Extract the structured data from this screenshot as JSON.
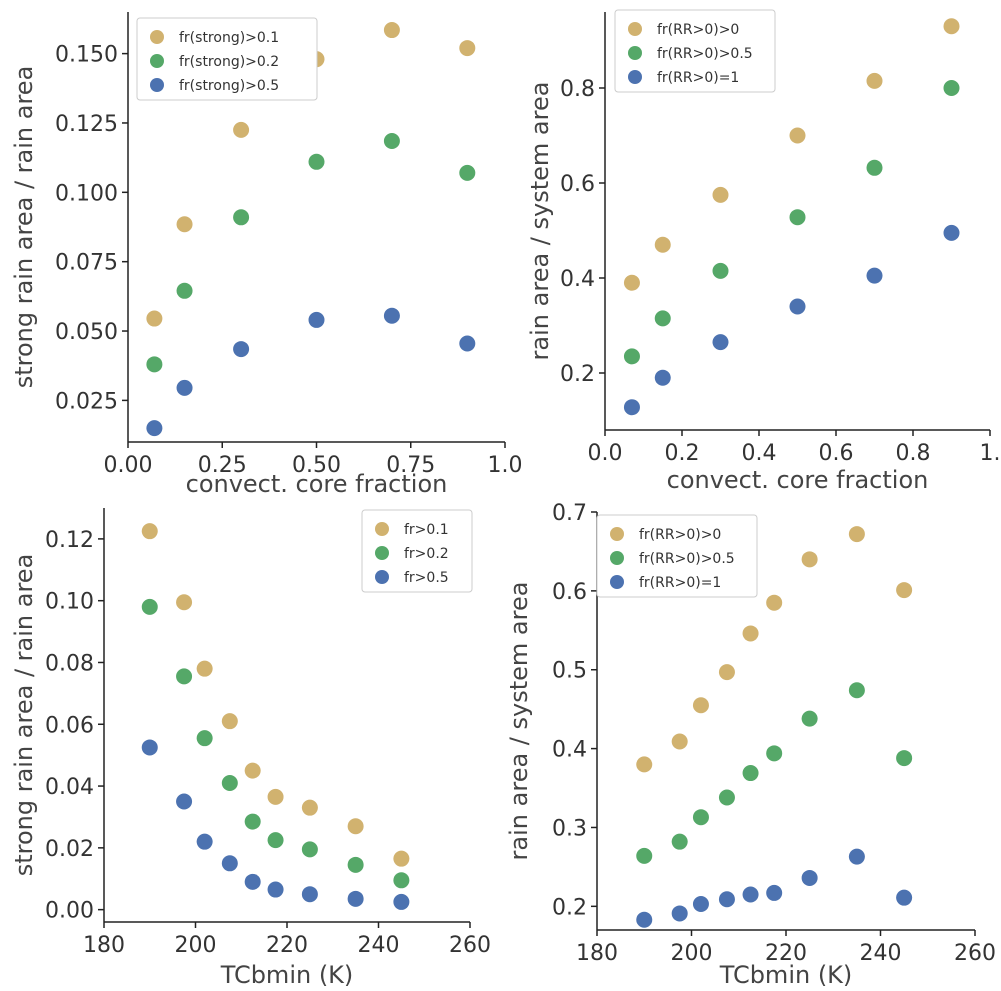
{
  "colors": {
    "tan": "#d1b26f",
    "green": "#55a868",
    "blue": "#4c72b0"
  },
  "chart_data": [
    {
      "type": "scatter",
      "xlabel": "convect. core fraction",
      "ylabel": "strong rain area / rain area",
      "xlim": [
        0,
        1.0
      ],
      "ylim": [
        0.01,
        0.165
      ],
      "xticks": [
        0.0,
        0.25,
        0.5,
        0.75,
        1.0
      ],
      "xtick_labels": [
        "0.00",
        "0.25",
        "0.50",
        "0.75",
        "1.0"
      ],
      "yticks": [
        0.025,
        0.05,
        0.075,
        0.1,
        0.125,
        0.15
      ],
      "ytick_labels": [
        "0.025",
        "0.050",
        "0.075",
        "0.100",
        "0.125",
        "0.150"
      ],
      "legend": "top-left",
      "grid": false,
      "series": [
        {
          "name": "fr(strong)>0.1",
          "color": "tan",
          "x": [
            0.07,
            0.15,
            0.3,
            0.5,
            0.7,
            0.9
          ],
          "y": [
            0.0545,
            0.0885,
            0.1225,
            0.148,
            0.1585,
            0.152
          ]
        },
        {
          "name": "fr(strong)>0.2",
          "color": "green",
          "x": [
            0.07,
            0.15,
            0.3,
            0.5,
            0.7,
            0.9
          ],
          "y": [
            0.038,
            0.0645,
            0.091,
            0.111,
            0.1185,
            0.107
          ]
        },
        {
          "name": "fr(strong)>0.5",
          "color": "blue",
          "x": [
            0.07,
            0.15,
            0.3,
            0.5,
            0.7,
            0.9
          ],
          "y": [
            0.015,
            0.0295,
            0.0435,
            0.054,
            0.0555,
            0.0455
          ]
        }
      ]
    },
    {
      "type": "scatter",
      "xlabel": "convect. core fraction",
      "ylabel": "rain area / system area",
      "xlim": [
        0,
        1.0
      ],
      "ylim": [
        0.08,
        0.96
      ],
      "xticks": [
        0.0,
        0.2,
        0.4,
        0.6,
        0.8,
        1.0
      ],
      "xtick_labels": [
        "0.0",
        "0.2",
        "0.4",
        "0.6",
        "0.8",
        "1."
      ],
      "yticks": [
        0.2,
        0.4,
        0.6,
        0.8
      ],
      "ytick_labels": [
        "0.2",
        "0.4",
        "0.6",
        "0.8"
      ],
      "legend": "top-left",
      "grid": false,
      "series": [
        {
          "name": "fr(RR>0)>0",
          "color": "tan",
          "x": [
            0.07,
            0.15,
            0.3,
            0.5,
            0.7,
            0.9
          ],
          "y": [
            0.39,
            0.47,
            0.575,
            0.7,
            0.815,
            0.93
          ]
        },
        {
          "name": "fr(RR>0)>0.5",
          "color": "green",
          "x": [
            0.07,
            0.15,
            0.3,
            0.5,
            0.7,
            0.9
          ],
          "y": [
            0.235,
            0.315,
            0.415,
            0.528,
            0.632,
            0.8
          ]
        },
        {
          "name": "fr(RR>0)=1",
          "color": "blue",
          "x": [
            0.07,
            0.15,
            0.3,
            0.5,
            0.7,
            0.9
          ],
          "y": [
            0.128,
            0.19,
            0.265,
            0.34,
            0.405,
            0.495
          ]
        }
      ]
    },
    {
      "type": "scatter",
      "xlabel": "TCbmin (K)",
      "ylabel": "strong rain area / rain area",
      "xlim": [
        180,
        260
      ],
      "ylim": [
        -0.004,
        0.13
      ],
      "xticks": [
        180,
        200,
        220,
        240,
        260
      ],
      "xtick_labels": [
        "180",
        "200",
        "220",
        "240",
        "260"
      ],
      "yticks": [
        0.0,
        0.02,
        0.04,
        0.06,
        0.08,
        0.1,
        0.12
      ],
      "ytick_labels": [
        "0.00",
        "0.02",
        "0.04",
        "0.06",
        "0.08",
        "0.10",
        "0.12"
      ],
      "legend": "top-right",
      "grid": false,
      "series": [
        {
          "name": "fr>0.1",
          "color": "tan",
          "x": [
            190,
            197.5,
            202,
            207.5,
            212.5,
            217.5,
            225,
            235,
            245
          ],
          "y": [
            0.1225,
            0.0995,
            0.078,
            0.061,
            0.045,
            0.0365,
            0.033,
            0.027,
            0.0165
          ]
        },
        {
          "name": "fr>0.2",
          "color": "green",
          "x": [
            190,
            197.5,
            202,
            207.5,
            212.5,
            217.5,
            225,
            235,
            245
          ],
          "y": [
            0.098,
            0.0755,
            0.0555,
            0.041,
            0.0285,
            0.0225,
            0.0195,
            0.0145,
            0.0095
          ]
        },
        {
          "name": "fr>0.5",
          "color": "blue",
          "x": [
            190,
            197.5,
            202,
            207.5,
            212.5,
            217.5,
            225,
            235,
            245
          ],
          "y": [
            0.0525,
            0.035,
            0.022,
            0.015,
            0.009,
            0.0065,
            0.005,
            0.0035,
            0.0025
          ]
        }
      ]
    },
    {
      "type": "scatter",
      "xlabel": "TCbmin (K)",
      "ylabel": "rain area / system area",
      "xlim": [
        180,
        260
      ],
      "ylim": [
        0.17,
        0.7
      ],
      "xticks": [
        180,
        200,
        220,
        240,
        260
      ],
      "xtick_labels": [
        "180",
        "200",
        "220",
        "240",
        "260"
      ],
      "yticks": [
        0.2,
        0.3,
        0.4,
        0.5,
        0.6,
        0.7
      ],
      "ytick_labels": [
        "0.2",
        "0.3",
        "0.4",
        "0.5",
        "0.6",
        "0.7"
      ],
      "legend": "top-left",
      "grid": false,
      "series": [
        {
          "name": "fr(RR>0)>0",
          "color": "tan",
          "x": [
            190,
            197.5,
            202,
            207.5,
            212.5,
            217.5,
            225,
            235,
            245
          ],
          "y": [
            0.38,
            0.409,
            0.455,
            0.497,
            0.546,
            0.585,
            0.64,
            0.672,
            0.601
          ]
        },
        {
          "name": "fr(RR>0)>0.5",
          "color": "green",
          "x": [
            190,
            197.5,
            202,
            207.5,
            212.5,
            217.5,
            225,
            235,
            245
          ],
          "y": [
            0.264,
            0.282,
            0.313,
            0.338,
            0.369,
            0.394,
            0.438,
            0.474,
            0.388
          ]
        },
        {
          "name": "fr(RR>0)=1",
          "color": "blue",
          "x": [
            190,
            197.5,
            202,
            207.5,
            212.5,
            217.5,
            225,
            235,
            245
          ],
          "y": [
            0.183,
            0.191,
            0.203,
            0.209,
            0.215,
            0.217,
            0.236,
            0.263,
            0.211
          ]
        }
      ]
    }
  ]
}
